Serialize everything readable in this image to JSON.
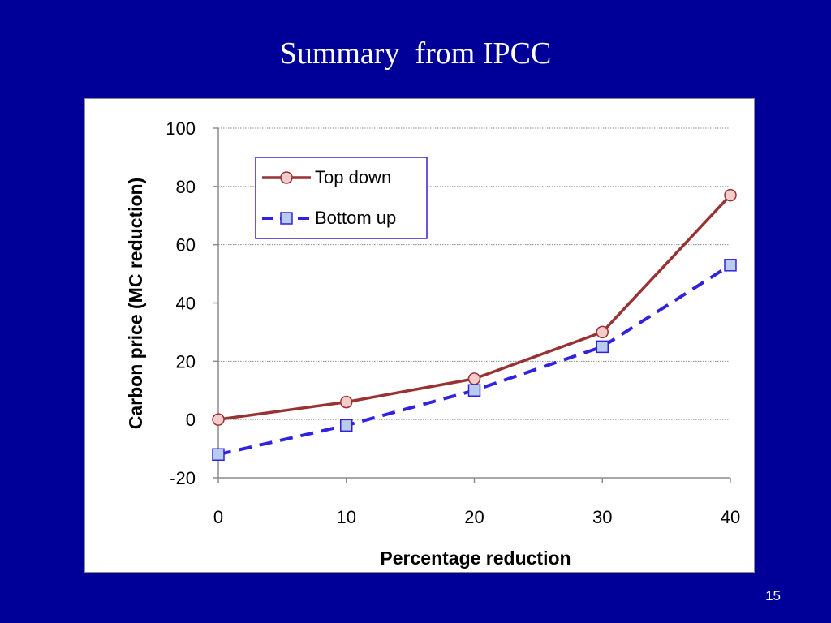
{
  "slide": {
    "title": "Summary  from IPCC",
    "number": "15"
  },
  "colors": {
    "background": "#000099",
    "top_down_line": "#993333",
    "top_down_marker": "#f5cccc",
    "bottom_up_line": "#3322dd",
    "bottom_up_marker": "#b8ccee",
    "legend_border": "#3322cc"
  },
  "chart_data": {
    "type": "line",
    "xlabel": "Percentage reduction",
    "ylabel": "Carbon price (MC reduction)",
    "x": [
      0,
      10,
      20,
      30,
      40
    ],
    "xlim": [
      0,
      40
    ],
    "ylim": [
      -20,
      100
    ],
    "xticks": [
      0,
      10,
      20,
      30,
      40
    ],
    "yticks": [
      -20,
      0,
      20,
      40,
      60,
      80,
      100
    ],
    "grid": "horizontal dotted",
    "legend_position": "top-left",
    "series": [
      {
        "name": "Top down",
        "marker": "circle",
        "style": "solid",
        "values": [
          0,
          6,
          14,
          30,
          77
        ]
      },
      {
        "name": "Bottom up",
        "marker": "square",
        "style": "dashed",
        "values": [
          -12,
          -2,
          10,
          25,
          53
        ]
      }
    ]
  }
}
